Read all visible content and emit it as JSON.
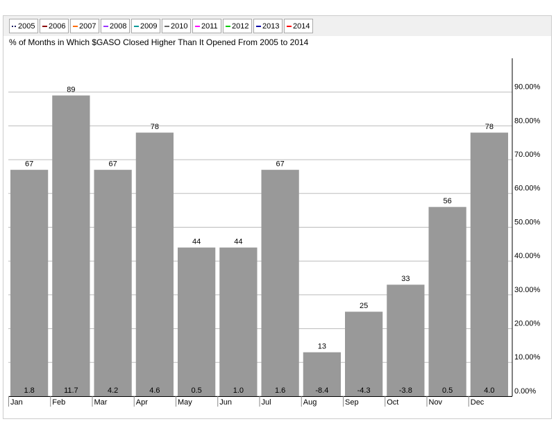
{
  "chart_data": {
    "type": "bar",
    "title": "% of Months in Which $GASO Closed Higher Than It Opened From 2005 to 2014",
    "legend": [
      {
        "name": "2005",
        "color": "#1a1a5e"
      },
      {
        "name": "2006",
        "color": "#8b0000"
      },
      {
        "name": "2007",
        "color": "#ff6a00"
      },
      {
        "name": "2008",
        "color": "#9933ff"
      },
      {
        "name": "2009",
        "color": "#009999"
      },
      {
        "name": "2010",
        "color": "#666666"
      },
      {
        "name": "2011",
        "color": "#ff00ff"
      },
      {
        "name": "2012",
        "color": "#00cc00"
      },
      {
        "name": "2013",
        "color": "#0000aa"
      },
      {
        "name": "2014",
        "color": "#ff0000"
      }
    ],
    "categories": [
      "Jan",
      "Feb",
      "Mar",
      "Apr",
      "May",
      "Jun",
      "Jul",
      "Aug",
      "Sep",
      "Oct",
      "Nov",
      "Dec"
    ],
    "values": [
      67,
      89,
      67,
      78,
      44,
      44,
      67,
      13,
      25,
      33,
      56,
      78
    ],
    "change_labels": [
      "1.8",
      "11.7",
      "4.2",
      "4.6",
      "0.5",
      "1.0",
      "1.6",
      "-8.4",
      "-4.3",
      "-3.8",
      "0.5",
      "4.0"
    ],
    "color": "#999999",
    "ylim": [
      0,
      100
    ],
    "yticks": [
      {
        "value": 0,
        "label": "0.00%"
      },
      {
        "value": 10,
        "label": "10.00%"
      },
      {
        "value": 20,
        "label": "20.00%"
      },
      {
        "value": 30,
        "label": "30.00%"
      },
      {
        "value": 40,
        "label": "40.00%"
      },
      {
        "value": 50,
        "label": "50.00%"
      },
      {
        "value": 60,
        "label": "60.00%"
      },
      {
        "value": 70,
        "label": "70.00%"
      },
      {
        "value": 80,
        "label": "80.00%"
      },
      {
        "value": 90,
        "label": "90.00%"
      }
    ],
    "grid": true
  }
}
